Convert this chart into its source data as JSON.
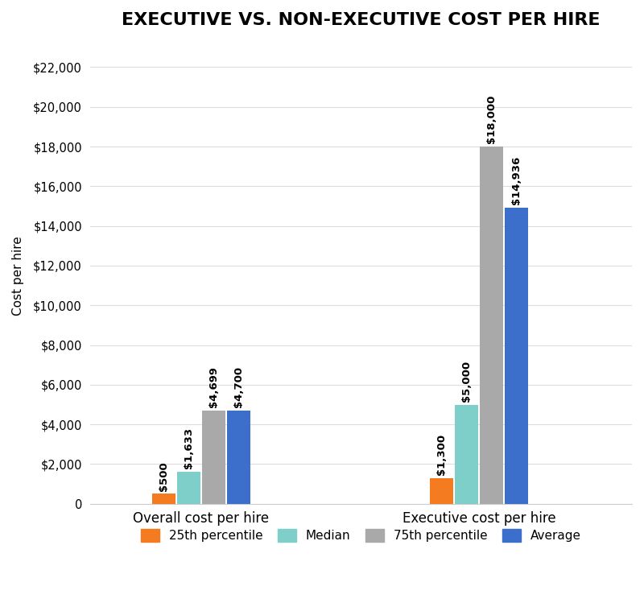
{
  "title": "EXECUTIVE VS. NON-EXECUTIVE COST PER HIRE",
  "categories": [
    "Overall cost per hire",
    "Executive cost per hire"
  ],
  "series": {
    "25th percentile": [
      500,
      1300
    ],
    "Median": [
      1633,
      5000
    ],
    "75th percentile": [
      4699,
      18000
    ],
    "Average": [
      4700,
      14936
    ]
  },
  "colors": {
    "25th percentile": "#F47B20",
    "Median": "#7ECECA",
    "75th percentile": "#A9A9A9",
    "Average": "#3C6ECC"
  },
  "bar_labels": {
    "25th percentile": [
      "$500",
      "$1,300"
    ],
    "Median": [
      "$1,633",
      "$5,000"
    ],
    "75th percentile": [
      "$4,699",
      "$18,000"
    ],
    "Average": [
      "$4,700",
      "$14,936"
    ]
  },
  "ylabel": "Cost per hire",
  "ylim": [
    0,
    23000
  ],
  "yticks": [
    0,
    2000,
    4000,
    6000,
    8000,
    10000,
    12000,
    14000,
    16000,
    18000,
    20000,
    22000
  ],
  "ytick_labels": [
    "0",
    "$2,000",
    "$4,000",
    "$6,000",
    "$8,000",
    "$10,000",
    "$12,000",
    "$14,000",
    "$16,000",
    "$18,000",
    "$20,000",
    "$22,000"
  ],
  "background_color": "#FFFFFF",
  "title_fontsize": 16,
  "label_fontsize": 9.5,
  "legend_fontsize": 11,
  "ylabel_fontsize": 11,
  "group_centers": [
    1,
    3
  ],
  "bar_width": 0.18,
  "xlim": [
    0.2,
    4.1
  ]
}
